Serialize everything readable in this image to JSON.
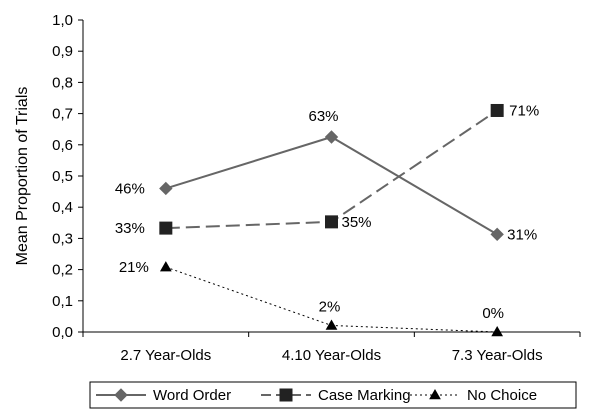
{
  "chart_data": {
    "type": "line",
    "categories": [
      "2.7 Year-Olds",
      "4.10 Year-Olds",
      "7.3 Year-Olds"
    ],
    "series": [
      {
        "name": "Word Order",
        "values": [
          0.46,
          0.625,
          0.313
        ],
        "labels": [
          "46%",
          "63%",
          "31%"
        ],
        "color": "#666666",
        "line": "solid",
        "marker": "diamond"
      },
      {
        "name": "Case Marking",
        "values": [
          0.333,
          0.353,
          0.71
        ],
        "labels": [
          "33%",
          "35%",
          "71%"
        ],
        "color": "#666666",
        "line": "dashed",
        "marker": "square"
      },
      {
        "name": "No Choice",
        "values": [
          0.208,
          0.021,
          0.0
        ],
        "labels": [
          "21%",
          "2%",
          "0%"
        ],
        "color": "#000000",
        "line": "dotted",
        "marker": "triangle"
      }
    ],
    "ylabel": "Mean Proportion of Trials",
    "xlabel": "",
    "ylim": [
      0,
      1.0
    ],
    "yticks": [
      "0,0",
      "0,1",
      "0,2",
      "0,3",
      "0,4",
      "0,5",
      "0,6",
      "0,7",
      "0,8",
      "0,9",
      "1,0"
    ],
    "grid": false,
    "legend_position": "bottom"
  }
}
